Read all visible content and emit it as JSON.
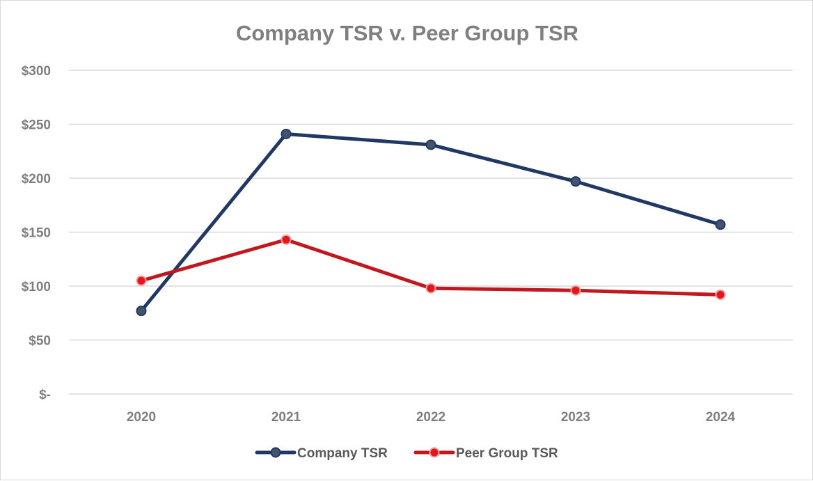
{
  "chart_data": {
    "type": "line",
    "title": "Company TSR v. Peer Group TSR",
    "xlabel": "",
    "ylabel": "",
    "categories": [
      "2020",
      "2021",
      "2022",
      "2023",
      "2024"
    ],
    "ylim": [
      0,
      300
    ],
    "yticks": [
      0,
      50,
      100,
      150,
      200,
      250,
      300
    ],
    "ytick_labels": [
      "$-",
      "$50",
      "$100",
      "$150",
      "$200",
      "$250",
      "$300"
    ],
    "grid": true,
    "legend_position": "bottom",
    "series": [
      {
        "name": "Company TSR",
        "values": [
          77,
          241,
          231,
          197,
          157
        ],
        "color": "#203864",
        "marker_fill": "#44546a"
      },
      {
        "name": "Peer Group TSR",
        "values": [
          105,
          143,
          98,
          96,
          92
        ],
        "color": "#c0181f",
        "marker_fill": "#e8141c"
      }
    ]
  }
}
